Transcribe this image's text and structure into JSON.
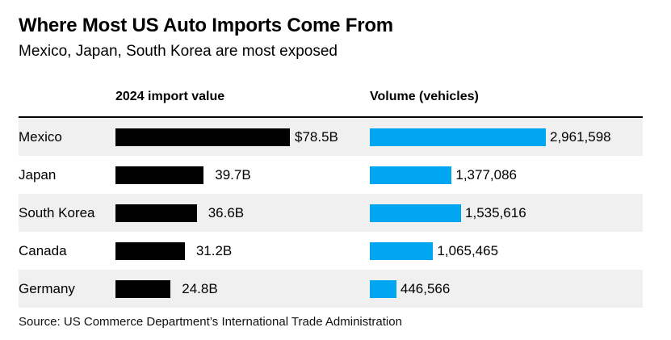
{
  "title": "Where Most US Auto Imports Come From",
  "subtitle": "Mexico, Japan, South Korea are most exposed",
  "source": "Source: US Commerce Department’s International Trade Administration",
  "colors": {
    "import_bar": "#000000",
    "volume_bar": "#00a6f2",
    "row_shade": "#f0f0f0"
  },
  "chart_data": {
    "type": "bar",
    "orientation": "horizontal",
    "title": "Where Most US Auto Imports Come From",
    "subtitle": "Mexico, Japan, South Korea are most exposed",
    "categories": [
      "Mexico",
      "Japan",
      "South Korea",
      "Canada",
      "Germany"
    ],
    "series": [
      {
        "name": "2024 import value",
        "unit": "USD billions",
        "values": [
          78.5,
          39.7,
          36.6,
          31.2,
          24.8
        ],
        "labels": [
          "$78.5B",
          "39.7B",
          "36.6B",
          "31.2B",
          "24.8B"
        ]
      },
      {
        "name": "Volume (vehicles)",
        "unit": "vehicles",
        "values": [
          2961598,
          1377086,
          1535616,
          1065465,
          446566
        ],
        "labels": [
          "2,961,598",
          "1,377,086",
          "1,535,616",
          "1,065,465",
          "446,566"
        ]
      }
    ]
  }
}
